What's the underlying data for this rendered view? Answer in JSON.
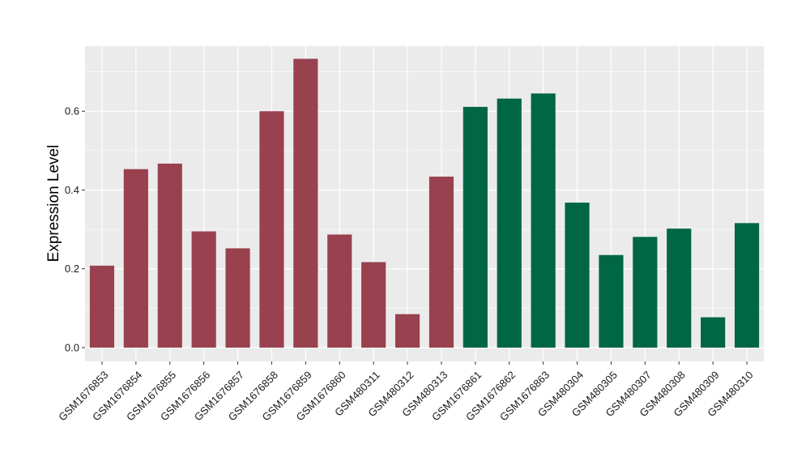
{
  "chart_data": {
    "type": "bar",
    "title": "",
    "xlabel": "",
    "ylabel": "Expression Level",
    "ylim": [
      -0.035,
      0.765
    ],
    "yticks": [
      0.0,
      0.2,
      0.4,
      0.6
    ],
    "ytick_labels": [
      "0.0",
      "0.2",
      "0.4",
      "0.6"
    ],
    "grid": true,
    "legend": "none",
    "categories": [
      "GSM1676853",
      "GSM1676854",
      "GSM1676855",
      "GSM1676856",
      "GSM1676857",
      "GSM1676858",
      "GSM1676859",
      "GSM1676860",
      "GSM480311",
      "GSM480312",
      "GSM480313",
      "GSM1676861",
      "GSM1676862",
      "GSM1676863",
      "GSM480304",
      "GSM480305",
      "GSM480307",
      "GSM480308",
      "GSM480309",
      "GSM480310"
    ],
    "values": [
      0.208,
      0.453,
      0.467,
      0.295,
      0.252,
      0.6,
      0.733,
      0.287,
      0.217,
      0.085,
      0.434,
      0.611,
      0.632,
      0.645,
      0.368,
      0.235,
      0.281,
      0.302,
      0.077,
      0.316
    ],
    "bar_colors": [
      "#99414f",
      "#99414f",
      "#99414f",
      "#99414f",
      "#99414f",
      "#99414f",
      "#99414f",
      "#99414f",
      "#99414f",
      "#99414f",
      "#99414f",
      "#006644",
      "#006644",
      "#006644",
      "#006644",
      "#006644",
      "#006644",
      "#006644",
      "#006644",
      "#006644"
    ],
    "panel_background": "#ebebeb",
    "grid_color": "#ffffff"
  }
}
